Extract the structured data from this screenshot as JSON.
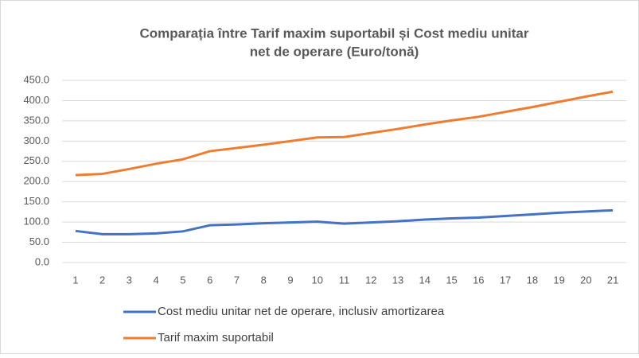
{
  "chart_data": {
    "type": "line",
    "title_lines": [
      "Comparația între Tarif maxim suportabil și Cost mediu unitar",
      "net de operare (Euro/tonă)"
    ],
    "categories": [
      "1",
      "2",
      "3",
      "4",
      "5",
      "6",
      "7",
      "8",
      "9",
      "10",
      "11",
      "12",
      "13",
      "14",
      "15",
      "16",
      "17",
      "18",
      "19",
      "20",
      "21"
    ],
    "series": [
      {
        "name": "Cost mediu unitar net de operare, inclusiv amortizarea",
        "color": "#4472c4",
        "values": [
          78,
          70,
          70,
          72,
          77,
          92,
          94,
          97,
          99,
          101,
          96,
          99,
          102,
          106,
          109,
          111,
          115,
          119,
          123,
          126,
          129
        ]
      },
      {
        "name": "Tarif maxim suportabil",
        "color": "#ed7d31",
        "values": [
          216,
          219,
          231,
          244,
          255,
          275,
          283,
          291,
          300,
          309,
          310,
          320,
          330,
          341,
          351,
          360,
          372,
          384,
          397,
          410,
          422
        ]
      }
    ],
    "ylim": [
      0,
      450
    ],
    "yticks": [
      {
        "value": 0,
        "label": "0.0"
      },
      {
        "value": 50,
        "label": "50.0"
      },
      {
        "value": 100,
        "label": "100.0"
      },
      {
        "value": 150,
        "label": "150.0"
      },
      {
        "value": 200,
        "label": "200.0"
      },
      {
        "value": 250,
        "label": "250.0"
      },
      {
        "value": 300,
        "label": "300.0"
      },
      {
        "value": 350,
        "label": "350.0"
      },
      {
        "value": 400,
        "label": "400.0"
      },
      {
        "value": 450,
        "label": "450.0"
      }
    ],
    "grid": true,
    "legend": "bottom"
  }
}
